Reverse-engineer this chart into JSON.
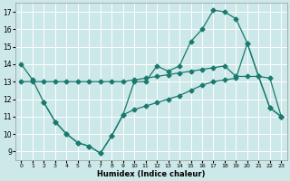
{
  "bg_color": "#cce8e8",
  "line_color": "#1a7a6e",
  "grid_color": "#ffffff",
  "xlabel": "Humidex (Indice chaleur)",
  "xlim": [
    -0.5,
    23.5
  ],
  "ylim": [
    8.5,
    17.5
  ],
  "yticks": [
    9,
    10,
    11,
    12,
    13,
    14,
    15,
    16,
    17
  ],
  "xticks": [
    0,
    1,
    2,
    3,
    4,
    5,
    6,
    7,
    8,
    9,
    10,
    11,
    12,
    13,
    14,
    15,
    16,
    17,
    18,
    19,
    20,
    21,
    22,
    23
  ],
  "curve_top_x": [
    0,
    1,
    2,
    3,
    4,
    5,
    6,
    7,
    8,
    9,
    10,
    11,
    12,
    13,
    14,
    15,
    16,
    17,
    18,
    19,
    20,
    21,
    22,
    23
  ],
  "curve_top_y": [
    14.0,
    13.1,
    11.8,
    10.7,
    10.0,
    9.5,
    9.3,
    8.9,
    9.9,
    11.1,
    13.0,
    13.0,
    13.9,
    13.6,
    13.9,
    15.3,
    16.0,
    17.1,
    17.0,
    16.6,
    15.2,
    13.3,
    11.5,
    11.0
  ],
  "curve_mid_x": [
    0,
    1,
    2,
    3,
    4,
    5,
    6,
    7,
    8,
    9,
    10,
    11,
    12,
    13,
    14,
    15,
    16,
    17,
    18,
    19,
    20,
    21,
    22,
    23
  ],
  "curve_mid_y": [
    13.0,
    13.0,
    13.0,
    13.0,
    13.0,
    13.0,
    13.0,
    13.0,
    13.0,
    13.0,
    13.1,
    13.2,
    13.3,
    13.4,
    13.5,
    13.6,
    13.7,
    13.8,
    13.9,
    13.3,
    13.3,
    13.3,
    13.2,
    11.0
  ],
  "curve_bot_x": [
    2,
    3,
    4,
    5,
    6,
    7,
    8,
    9,
    10,
    11,
    12,
    13,
    14,
    15,
    16,
    17,
    18,
    19,
    20,
    21,
    22,
    23
  ],
  "curve_bot_y": [
    11.8,
    10.7,
    10.0,
    9.5,
    9.3,
    8.9,
    9.9,
    11.1,
    11.4,
    11.6,
    11.8,
    12.0,
    12.2,
    12.5,
    12.8,
    13.0,
    13.1,
    13.2,
    15.2,
    13.3,
    11.5,
    11.0
  ]
}
